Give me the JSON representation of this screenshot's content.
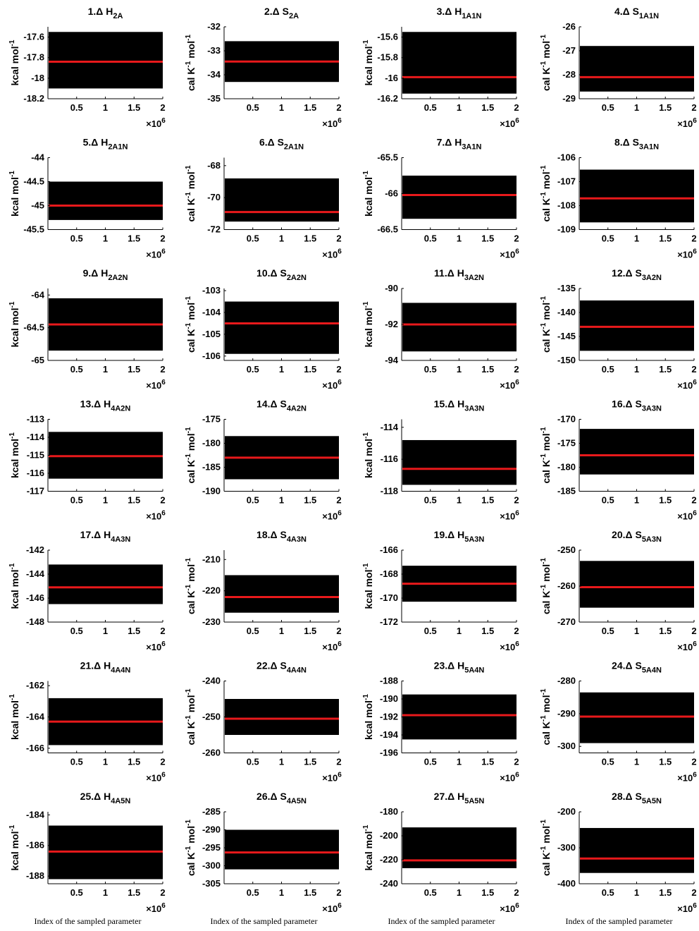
{
  "chart_data": [
    {
      "type": "trace",
      "title": "1.Δ H",
      "title_sub": "2A",
      "ylabel": [
        "kcal mol",
        "-1"
      ],
      "ylim": [
        -18.2,
        -17.5
      ],
      "yticks": [
        -18.2,
        -18,
        -17.8,
        -17.6
      ],
      "xlim": [
        0,
        2
      ],
      "xticks": [
        0.5,
        1,
        1.5,
        2
      ],
      "x_multiplier": [
        "×10",
        "6"
      ],
      "band": [
        -18.1,
        -17.55
      ],
      "mean": -17.84
    },
    {
      "type": "trace",
      "title": "2.Δ S",
      "title_sub": "2A",
      "ylabel": [
        "cal K",
        "-1",
        " mol",
        "-1"
      ],
      "ylim": [
        -35,
        -32
      ],
      "yticks": [
        -35,
        -34,
        -33,
        -32
      ],
      "xlim": [
        0,
        2
      ],
      "xticks": [
        0.5,
        1,
        1.5,
        2
      ],
      "x_multiplier": [
        "×10",
        "6"
      ],
      "band": [
        -34.3,
        -32.6
      ],
      "mean": -33.45
    },
    {
      "type": "trace",
      "title": "3.Δ H",
      "title_sub": "1A1N",
      "ylabel": [
        "kcal mol",
        "-1"
      ],
      "ylim": [
        -16.2,
        -15.5
      ],
      "yticks": [
        -16.2,
        -16,
        -15.8,
        -15.6
      ],
      "xlim": [
        0,
        2
      ],
      "xticks": [
        0.5,
        1,
        1.5,
        2
      ],
      "x_multiplier": [
        "×10",
        "6"
      ],
      "band": [
        -16.15,
        -15.55
      ],
      "mean": -15.99
    },
    {
      "type": "trace",
      "title": "4.Δ S",
      "title_sub": "1A1N",
      "ylabel": [
        "cal K",
        "-1",
        " mol",
        "-1"
      ],
      "ylim": [
        -29,
        -26
      ],
      "yticks": [
        -29,
        -28,
        -27,
        -26
      ],
      "xlim": [
        0,
        2
      ],
      "xticks": [
        0.5,
        1,
        1.5,
        2
      ],
      "x_multiplier": [
        "×10",
        "6"
      ],
      "band": [
        -28.7,
        -26.8
      ],
      "mean": -28.1
    },
    {
      "type": "trace",
      "title": "5.Δ H",
      "title_sub": "2A1N",
      "ylabel": [
        "kcal mol",
        "-1"
      ],
      "ylim": [
        -45.5,
        -44
      ],
      "yticks": [
        -45.5,
        -45,
        -44.5,
        -44
      ],
      "xlim": [
        0,
        2
      ],
      "xticks": [
        0.5,
        1,
        1.5,
        2
      ],
      "x_multiplier": [
        "×10",
        "6"
      ],
      "band": [
        -45.3,
        -44.5
      ],
      "mean": -45
    },
    {
      "type": "trace",
      "title": "6.Δ S",
      "title_sub": "2A1N",
      "ylabel": [
        "cal K",
        "-1",
        " mol",
        "-1"
      ],
      "ylim": [
        -72,
        -67.5
      ],
      "yticks": [
        -72,
        -70,
        -68
      ],
      "xlim": [
        0,
        2
      ],
      "xticks": [
        0.5,
        1,
        1.5,
        2
      ],
      "x_multiplier": [
        "×10",
        "6"
      ],
      "band": [
        -71.5,
        -68.8
      ],
      "mean": -70.9
    },
    {
      "type": "trace",
      "title": "7.Δ H",
      "title_sub": "3A1N",
      "ylabel": [
        "kcal mol",
        "-1"
      ],
      "ylim": [
        -66.5,
        -65.5
      ],
      "yticks": [
        -66.5,
        -66,
        -65.5
      ],
      "xlim": [
        0,
        2
      ],
      "xticks": [
        0.5,
        1,
        1.5,
        2
      ],
      "x_multiplier": [
        "×10",
        "6"
      ],
      "band": [
        -66.35,
        -65.75
      ],
      "mean": -66.02
    },
    {
      "type": "trace",
      "title": "8.Δ S",
      "title_sub": "3A1N",
      "ylabel": [
        "cal K",
        "-1",
        " mol",
        "-1"
      ],
      "ylim": [
        -109,
        -106
      ],
      "yticks": [
        -109,
        -108,
        -107,
        -106
      ],
      "xlim": [
        0,
        2
      ],
      "xticks": [
        0.5,
        1,
        1.5,
        2
      ],
      "x_multiplier": [
        "×10",
        "6"
      ],
      "band": [
        -108.7,
        -106.5
      ],
      "mean": -107.7
    },
    {
      "type": "trace",
      "title": "9.Δ H",
      "title_sub": "2A2N",
      "ylabel": [
        "kcal mol",
        "-1"
      ],
      "ylim": [
        -65,
        -63.9
      ],
      "yticks": [
        -65,
        -64.5,
        -64
      ],
      "xlim": [
        0,
        2
      ],
      "xticks": [
        0.5,
        1,
        1.5,
        2
      ],
      "x_multiplier": [
        "×10",
        "6"
      ],
      "band": [
        -64.85,
        -64.05
      ],
      "mean": -64.45
    },
    {
      "type": "trace",
      "title": "10.Δ S",
      "title_sub": "2A2N",
      "ylabel": [
        "cal K",
        "-1",
        " mol",
        "-1"
      ],
      "ylim": [
        -106.2,
        -102.9
      ],
      "yticks": [
        -106,
        -105,
        -104,
        -103
      ],
      "xlim": [
        0,
        2
      ],
      "xticks": [
        0.5,
        1,
        1.5,
        2
      ],
      "x_multiplier": [
        "×10",
        "6"
      ],
      "band": [
        -105.9,
        -103.5
      ],
      "mean": -104.5
    },
    {
      "type": "trace",
      "title": "11.Δ H",
      "title_sub": "3A2N",
      "ylabel": [
        "kcal mol",
        "-1"
      ],
      "ylim": [
        -94,
        -90
      ],
      "yticks": [
        -94,
        -92,
        -90
      ],
      "xlim": [
        0,
        2
      ],
      "xticks": [
        0.5,
        1,
        1.5,
        2
      ],
      "x_multiplier": [
        "×10",
        "6"
      ],
      "band": [
        -93.5,
        -90.8
      ],
      "mean": -92
    },
    {
      "type": "trace",
      "title": "12.Δ S",
      "title_sub": "3A2N",
      "ylabel": [
        "cal K",
        "-1",
        " mol",
        "-1"
      ],
      "ylim": [
        -150,
        -135
      ],
      "yticks": [
        -150,
        -145,
        -140,
        -135
      ],
      "xlim": [
        0,
        2
      ],
      "xticks": [
        0.5,
        1,
        1.5,
        2
      ],
      "x_multiplier": [
        "×10",
        "6"
      ],
      "band": [
        -148,
        -137.5
      ],
      "mean": -143
    },
    {
      "type": "trace",
      "title": "13.Δ H",
      "title_sub": "4A2N",
      "ylabel": [
        "kcal mol",
        "-1"
      ],
      "ylim": [
        -117,
        -113
      ],
      "yticks": [
        -117,
        -116,
        -115,
        -114,
        -113
      ],
      "xlim": [
        0,
        2
      ],
      "xticks": [
        0.5,
        1,
        1.5,
        2
      ],
      "x_multiplier": [
        "×10",
        "6"
      ],
      "band": [
        -116.3,
        -113.7
      ],
      "mean": -115.05
    },
    {
      "type": "trace",
      "title": "14.Δ S",
      "title_sub": "4A2N",
      "ylabel": [
        "cal K",
        "-1",
        " mol",
        "-1"
      ],
      "ylim": [
        -190,
        -175
      ],
      "yticks": [
        -190,
        -185,
        -180,
        -175
      ],
      "xlim": [
        0,
        2
      ],
      "xticks": [
        0.5,
        1,
        1.5,
        2
      ],
      "x_multiplier": [
        "×10",
        "6"
      ],
      "band": [
        -187.5,
        -178.5
      ],
      "mean": -183
    },
    {
      "type": "trace",
      "title": "15.Δ H",
      "title_sub": "3A3N",
      "ylabel": [
        "kcal mol",
        "-1"
      ],
      "ylim": [
        -118,
        -113.5
      ],
      "yticks": [
        -118,
        -116,
        -114
      ],
      "xlim": [
        0,
        2
      ],
      "xticks": [
        0.5,
        1,
        1.5,
        2
      ],
      "x_multiplier": [
        "×10",
        "6"
      ],
      "band": [
        -117.6,
        -114.8
      ],
      "mean": -116.6
    },
    {
      "type": "trace",
      "title": "16.Δ S",
      "title_sub": "3A3N",
      "ylabel": [
        "cal K",
        "-1",
        " mol",
        "-1"
      ],
      "ylim": [
        -185,
        -170
      ],
      "yticks": [
        -185,
        -180,
        -175,
        -170
      ],
      "xlim": [
        0,
        2
      ],
      "xticks": [
        0.5,
        1,
        1.5,
        2
      ],
      "x_multiplier": [
        "×10",
        "6"
      ],
      "band": [
        -181.5,
        -172
      ],
      "mean": -177.5
    },
    {
      "type": "trace",
      "title": "17.Δ H",
      "title_sub": "4A3N",
      "ylabel": [
        "kcal mol",
        "-1"
      ],
      "ylim": [
        -148,
        -142
      ],
      "yticks": [
        -148,
        -146,
        -144,
        -142
      ],
      "xlim": [
        0,
        2
      ],
      "xticks": [
        0.5,
        1,
        1.5,
        2
      ],
      "x_multiplier": [
        "×10",
        "6"
      ],
      "band": [
        -146.5,
        -143.2
      ],
      "mean": -145.1
    },
    {
      "type": "trace",
      "title": "18.Δ S",
      "title_sub": "4A3N",
      "ylabel": [
        "cal K",
        "-1",
        " mol",
        "-1"
      ],
      "ylim": [
        -230,
        -207
      ],
      "yticks": [
        -230,
        -220,
        -210
      ],
      "xlim": [
        0,
        2
      ],
      "xticks": [
        0.5,
        1,
        1.5,
        2
      ],
      "x_multiplier": [
        "×10",
        "6"
      ],
      "band": [
        -227,
        -215
      ],
      "mean": -222
    },
    {
      "type": "trace",
      "title": "19.Δ H",
      "title_sub": "5A3N",
      "ylabel": [
        "kcal mol",
        "-1"
      ],
      "ylim": [
        -172,
        -166
      ],
      "yticks": [
        -172,
        -170,
        -168,
        -166
      ],
      "xlim": [
        0,
        2
      ],
      "xticks": [
        0.5,
        1,
        1.5,
        2
      ],
      "x_multiplier": [
        "×10",
        "6"
      ],
      "band": [
        -170.3,
        -167.3
      ],
      "mean": -168.8
    },
    {
      "type": "trace",
      "title": "20.Δ S",
      "title_sub": "5A3N",
      "ylabel": [
        "cal K",
        "-1",
        " mol",
        "-1"
      ],
      "ylim": [
        -270,
        -250
      ],
      "yticks": [
        -270,
        -260,
        -250
      ],
      "xlim": [
        0,
        2
      ],
      "xticks": [
        0.5,
        1,
        1.5,
        2
      ],
      "x_multiplier": [
        "×10",
        "6"
      ],
      "band": [
        -266,
        -253
      ],
      "mean": -260.3
    },
    {
      "type": "trace",
      "title": "21.Δ H",
      "title_sub": "4A4N",
      "ylabel": [
        "kcal mol",
        "-1"
      ],
      "ylim": [
        -166.3,
        -161.7
      ],
      "yticks": [
        -166,
        -164,
        -162
      ],
      "xlim": [
        0,
        2
      ],
      "xticks": [
        0.5,
        1,
        1.5,
        2
      ],
      "x_multiplier": [
        "×10",
        "6"
      ],
      "band": [
        -165.8,
        -162.8
      ],
      "mean": -164.3
    },
    {
      "type": "trace",
      "title": "22.Δ S",
      "title_sub": "4A4N",
      "ylabel": [
        "cal K",
        "-1",
        " mol",
        "-1"
      ],
      "ylim": [
        -260,
        -240
      ],
      "yticks": [
        -260,
        -250,
        -240
      ],
      "xlim": [
        0,
        2
      ],
      "xticks": [
        0.5,
        1,
        1.5,
        2
      ],
      "x_multiplier": [
        "×10",
        "6"
      ],
      "band": [
        -255,
        -245
      ],
      "mean": -250.5
    },
    {
      "type": "trace",
      "title": "23.Δ H",
      "title_sub": "5A4N",
      "ylabel": [
        "kcal mol",
        "-1"
      ],
      "ylim": [
        -196,
        -188
      ],
      "yticks": [
        -196,
        -194,
        -192,
        -190,
        -188
      ],
      "xlim": [
        0,
        2
      ],
      "xticks": [
        0.5,
        1,
        1.5,
        2
      ],
      "x_multiplier": [
        "×10",
        "6"
      ],
      "band": [
        -194.5,
        -189.5
      ],
      "mean": -191.8
    },
    {
      "type": "trace",
      "title": "24.Δ S",
      "title_sub": "5A4N",
      "ylabel": [
        "cal K",
        "-1",
        " mol",
        "-1"
      ],
      "ylim": [
        -302,
        -280
      ],
      "yticks": [
        -300,
        -290,
        -280
      ],
      "xlim": [
        0,
        2
      ],
      "xticks": [
        0.5,
        1,
        1.5,
        2
      ],
      "x_multiplier": [
        "×10",
        "6"
      ],
      "band": [
        -299,
        -283.5
      ],
      "mean": -290.9
    },
    {
      "type": "trace",
      "title": "25.Δ H",
      "title_sub": "4A5N",
      "ylabel": [
        "kcal mol",
        "-1"
      ],
      "ylim": [
        -188.5,
        -183.8
      ],
      "yticks": [
        -188,
        -186,
        -184
      ],
      "xlim": [
        0,
        2
      ],
      "xticks": [
        0.5,
        1,
        1.5,
        2
      ],
      "x_multiplier": [
        "×10",
        "6"
      ],
      "band": [
        -188.2,
        -184.7
      ],
      "mean": -186.4,
      "xlabel": "Index of the sampled parameter"
    },
    {
      "type": "trace",
      "title": "26.Δ S",
      "title_sub": "4A5N",
      "ylabel": [
        "cal K",
        "-1",
        " mol",
        "-1"
      ],
      "ylim": [
        -305,
        -285
      ],
      "yticks": [
        -305,
        -300,
        -295,
        -290,
        -285
      ],
      "xlim": [
        0,
        2
      ],
      "xticks": [
        0.5,
        1,
        1.5,
        2
      ],
      "x_multiplier": [
        "×10",
        "6"
      ],
      "band": [
        -301,
        -290
      ],
      "mean": -296.3,
      "xlabel": "Index of the sampled parameter"
    },
    {
      "type": "trace",
      "title": "27.Δ H",
      "title_sub": "5A5N",
      "ylabel": [
        "kcal mol",
        "-1"
      ],
      "ylim": [
        -240,
        -180
      ],
      "yticks": [
        -240,
        -220,
        -200,
        -180
      ],
      "xlim": [
        0,
        2
      ],
      "xticks": [
        0.5,
        1,
        1.5,
        2
      ],
      "x_multiplier": [
        "×10",
        "6"
      ],
      "band": [
        -227,
        -193
      ],
      "mean": -220.5,
      "xlabel": "Index of the sampled parameter"
    },
    {
      "type": "trace",
      "title": "28.Δ S",
      "title_sub": "5A5N",
      "ylabel": [
        "cal K",
        "-1",
        " mol",
        "-1"
      ],
      "ylim": [
        -400,
        -200
      ],
      "yticks": [
        -400,
        -300,
        -200
      ],
      "xlim": [
        0,
        2
      ],
      "xticks": [
        0.5,
        1,
        1.5,
        2
      ],
      "x_multiplier": [
        "×10",
        "6"
      ],
      "band": [
        -370,
        -245
      ],
      "mean": -330,
      "xlabel": "Index of the sampled parameter"
    }
  ]
}
